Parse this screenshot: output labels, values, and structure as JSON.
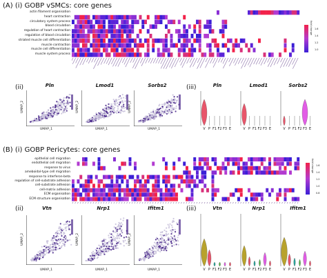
{
  "colors": {
    "low": "#3b1fd6",
    "mid": "#b23bd0",
    "high": "#f2224a",
    "violin_red": "#e8556a",
    "violin_magenta": "#e25ce6",
    "violin_olive": "#b8a22c",
    "violin_teal": "#27a59b",
    "violin_green": "#58b34a",
    "umap_density": "#4b2a8c"
  },
  "panelA": {
    "title": "(A) (i) GOBP vSMCs: core genes",
    "terms": [
      "actin filament organisation",
      "heart contraction",
      "circulatory system process",
      "blood circulation",
      "regulation of heart contraction",
      "regulation of blood circulation",
      "striated muscle cell differentiation",
      "muscle contraction",
      "muscle cell differentiation",
      "muscle system process"
    ],
    "legend": {
      "title": "fold change",
      "ticks": [
        "1.6",
        "1.4",
        "1.2",
        "1.0"
      ]
    },
    "umap_label": "(ii)",
    "violin_label": "(iii)",
    "genes": [
      "Pln",
      "Lmod1",
      "Sorbs2"
    ],
    "umap_x": "UMAP_1",
    "umap_y": "UMAP_2",
    "violin_x": [
      "V",
      "P",
      "F1",
      "F2",
      "F3",
      "E"
    ]
  },
  "panelB": {
    "title": "(B) (i) GOBP Pericytes: core genes",
    "terms": [
      "epithelial cell migration",
      "endothelial cell migration",
      "response to virus",
      "ameboidal-type cell migration",
      "response to interferon-beta",
      "regulation of cell-substrate adhesion",
      "cell-substrate adhesion",
      "cell-matrix adhesion",
      "ECM organisation",
      "ECM structure organisation"
    ],
    "legend": {
      "title": "fold change",
      "ticks": [
        "1.6",
        "1.4",
        "1.2",
        "1.0",
        "0.8"
      ]
    },
    "umap_label": "(ii)",
    "violin_label": "(iii)",
    "genes": [
      "Vtn",
      "Nrp1",
      "Ifitm1"
    ],
    "umap_x": "UMAP_1",
    "umap_y": "UMAP_2",
    "violin_x": [
      "V",
      "P",
      "F1",
      "F2",
      "F3",
      "E"
    ]
  }
}
